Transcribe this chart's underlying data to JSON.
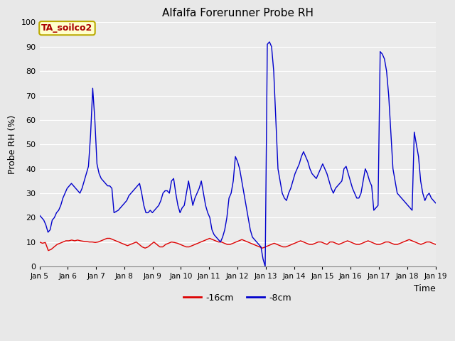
{
  "title": "Alfalfa Forerunner Probe RH",
  "ylabel": "Probe RH (%)",
  "xlabel": "Time",
  "ylim": [
    0,
    100
  ],
  "fig_bg_color": "#e8e8e8",
  "plot_bg_color": "#ebebeb",
  "grid_color": "#ffffff",
  "legend_label_red": "-16cm",
  "legend_label_blue": "-8cm",
  "legend_box_label": "TA_soilco2",
  "legend_box_bg": "#ffffcc",
  "legend_box_edge": "#bbaa00",
  "legend_box_text_color": "#aa0000",
  "red_color": "#dd0000",
  "blue_color": "#0000cc",
  "xtick_labels": [
    "Jan 5",
    "Jan 6",
    "Jan 7",
    "Jan 8",
    "Jan 9",
    "Jan 10",
    "Jan 11",
    "Jan 12",
    "Jan 13",
    "Jan 14",
    "Jan 15",
    "Jan 16",
    "Jan 17",
    "Jan 18",
    "Jan 19"
  ],
  "red_y": [
    10,
    9.5,
    9.8,
    6.5,
    7,
    8,
    9,
    9.5,
    10,
    10.5,
    10.5,
    10.8,
    10.5,
    10.8,
    10.5,
    10.3,
    10.2,
    10,
    10,
    9.8,
    10,
    10.5,
    11,
    11.5,
    11.5,
    11,
    10.5,
    10,
    9.5,
    9,
    8.5,
    9,
    9.5,
    10,
    9,
    8,
    7.5,
    8,
    9,
    10,
    9,
    8,
    8,
    9,
    9.5,
    10,
    9.8,
    9.5,
    9,
    8.5,
    8,
    8,
    8.5,
    9,
    9.5,
    10,
    10.5,
    11,
    11.5,
    11,
    10.5,
    10,
    10,
    9.5,
    9,
    9,
    9.5,
    10,
    10.5,
    11,
    10.5,
    10,
    9.5,
    9,
    8.5,
    8,
    7.5,
    8,
    8.5,
    9,
    9.5,
    9,
    8.5,
    8,
    8,
    8.5,
    9,
    9.5,
    10,
    10.5,
    10,
    9.5,
    9,
    9,
    9.5,
    10,
    10,
    9.5,
    9,
    10,
    10,
    9.5,
    9,
    9.5,
    10,
    10.5,
    10,
    9.5,
    9,
    9,
    9.5,
    10,
    10.5,
    10,
    9.5,
    9,
    9,
    9.5,
    10,
    10,
    9.5,
    9,
    9,
    9.5,
    10,
    10.5,
    11,
    10.5,
    10,
    9.5,
    9,
    9.5,
    10,
    10,
    9.5,
    9
  ],
  "blue_y": [
    21,
    20,
    19,
    17,
    14,
    15,
    19,
    20,
    22,
    23,
    25,
    28,
    30,
    32,
    33,
    34,
    33,
    32,
    31,
    30,
    32,
    35,
    38,
    41,
    54,
    73,
    60,
    42,
    38,
    36,
    35,
    34,
    33,
    33,
    32,
    22,
    22.5,
    23,
    24,
    25,
    26,
    27,
    29,
    30,
    31,
    32,
    33,
    34,
    30,
    25,
    22,
    22,
    23,
    22,
    23,
    24,
    25,
    27,
    30,
    31,
    31,
    30,
    35,
    36,
    30,
    25,
    22,
    24,
    25,
    30,
    35,
    30,
    25,
    28,
    30,
    32,
    35,
    30,
    25,
    22,
    20,
    15,
    13,
    12,
    11,
    10,
    12,
    15,
    20,
    28,
    30,
    35,
    45,
    43,
    40,
    35,
    30,
    25,
    20,
    15,
    12,
    11,
    10,
    9,
    8,
    3,
    0,
    91,
    92,
    90,
    80,
    60,
    40,
    35,
    30,
    28,
    27,
    30,
    32,
    35,
    38,
    40,
    42,
    45,
    47,
    45,
    43,
    40,
    38,
    37,
    36,
    38,
    40,
    42,
    40,
    38,
    35,
    32,
    30,
    32,
    33,
    34,
    35,
    40,
    41,
    38,
    35,
    32,
    30,
    28,
    28,
    30,
    35,
    40,
    38,
    35,
    33,
    23,
    24,
    25,
    88,
    87,
    85,
    80,
    70,
    55,
    40,
    35,
    30,
    29,
    28,
    27,
    26,
    25,
    24,
    23,
    55,
    50,
    45,
    35,
    30,
    27,
    29,
    30,
    28,
    27,
    26
  ]
}
